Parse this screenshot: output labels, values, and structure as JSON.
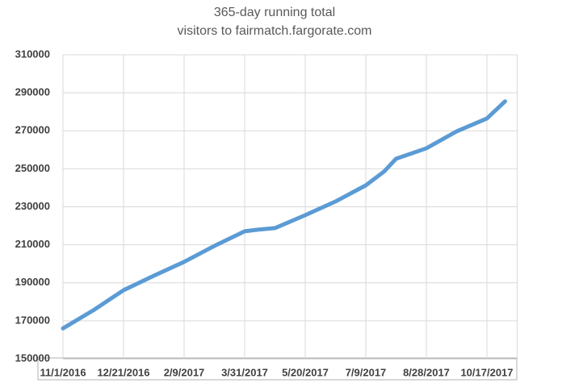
{
  "chart_data": {
    "type": "line",
    "title": "365-day running total",
    "subtitle": "visitors to fairmatch.fargorate.com",
    "x": [
      "11/1/2016",
      "11/26/2016",
      "12/21/2016",
      "1/15/2017",
      "2/9/2017",
      "3/6/2017",
      "3/31/2017",
      "4/10/2017",
      "4/25/2017",
      "5/20/2017",
      "6/14/2017",
      "7/9/2017",
      "7/24/2017",
      "8/3/2017",
      "8/28/2017",
      "9/22/2017",
      "10/17/2017",
      "11/1/2017"
    ],
    "series": [
      {
        "name": "visitors",
        "color": "#5b9bd5",
        "values": [
          166000,
          175500,
          186100,
          193700,
          201000,
          209400,
          217100,
          217900,
          218800,
          225600,
          232800,
          241300,
          248500,
          255300,
          260800,
          269700,
          276500,
          285500
        ]
      }
    ],
    "xlim": [
      "11/1/2016",
      "11/11/2017"
    ],
    "xticks": [
      "11/1/2016",
      "12/21/2016",
      "2/9/2017",
      "3/31/2017",
      "5/20/2017",
      "7/9/2017",
      "8/28/2017",
      "10/17/2017"
    ],
    "ylim": [
      150000,
      310000
    ],
    "yticks": [
      150000,
      170000,
      190000,
      210000,
      230000,
      250000,
      270000,
      290000,
      310000
    ],
    "grid": true
  }
}
